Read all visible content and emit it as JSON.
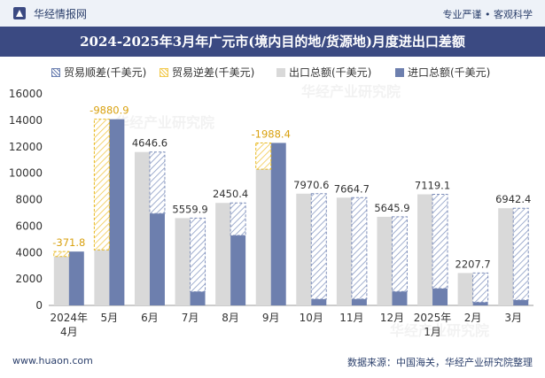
{
  "header": {
    "brand": "华经情报网",
    "slogan": "专业严谨 • 客观科学"
  },
  "title": "2024-2025年3月年广元市(境内目的地/货源地)月度进出口差额",
  "footer": {
    "website": "www.huaon.com",
    "source": "数据来源：中国海关，华经产业研究院整理"
  },
  "watermarks": [
    "华经产业研究院",
    "华经产业研究院",
    "华经产业研究院"
  ],
  "legend": [
    "贸易顺差(千美元)",
    "贸易逆差(千美元)",
    "出口总额(千美元)",
    "进口总额(千美元)"
  ],
  "colors": {
    "surplus": "#6b7fb0",
    "deficit": "#f2c94c",
    "export": "#d9d9d9",
    "import": "#6d7fae",
    "header_bg": "#3b4a82"
  },
  "chart_data": {
    "type": "bar",
    "title": "2024-2025年3月年广元市(境内目的地/货源地)月度进出口差额",
    "categories": [
      "2024年4月",
      "5月",
      "6月",
      "7月",
      "8月",
      "9月",
      "10月",
      "11月",
      "12月",
      "2025年1月",
      "2月",
      "3月"
    ],
    "series": [
      {
        "name": "出口总额(千美元)",
        "values": [
          3700,
          4200,
          11600,
          6600,
          7750,
          10300,
          8450,
          8150,
          6700,
          8400,
          2450,
          7350
        ]
      },
      {
        "name": "进口总额(千美元)",
        "values": [
          4071.8,
          14080.9,
          6953.4,
          1040.1,
          5299.6,
          12288.4,
          479.4,
          485.3,
          1054.1,
          1280.9,
          242.3,
          407.6
        ]
      }
    ],
    "balance": [
      -371.8,
      -9880.9,
      4646.6,
      5559.9,
      2450.4,
      -1988.4,
      7970.6,
      7664.7,
      5645.9,
      7119.1,
      2207.7,
      6942.4
    ],
    "balance_labels": [
      "-371.8",
      "-9880.9",
      "4646.6",
      "5559.9",
      "2450.4",
      "-1988.4",
      "7970.6",
      "7664.7",
      "5645.9",
      "7119.1",
      "2207.7",
      "6942.4"
    ],
    "ylim": [
      0,
      16000
    ],
    "yticks": [
      0,
      2000,
      4000,
      6000,
      8000,
      10000,
      12000,
      14000,
      16000
    ],
    "grid": false,
    "legend_position": "top"
  }
}
